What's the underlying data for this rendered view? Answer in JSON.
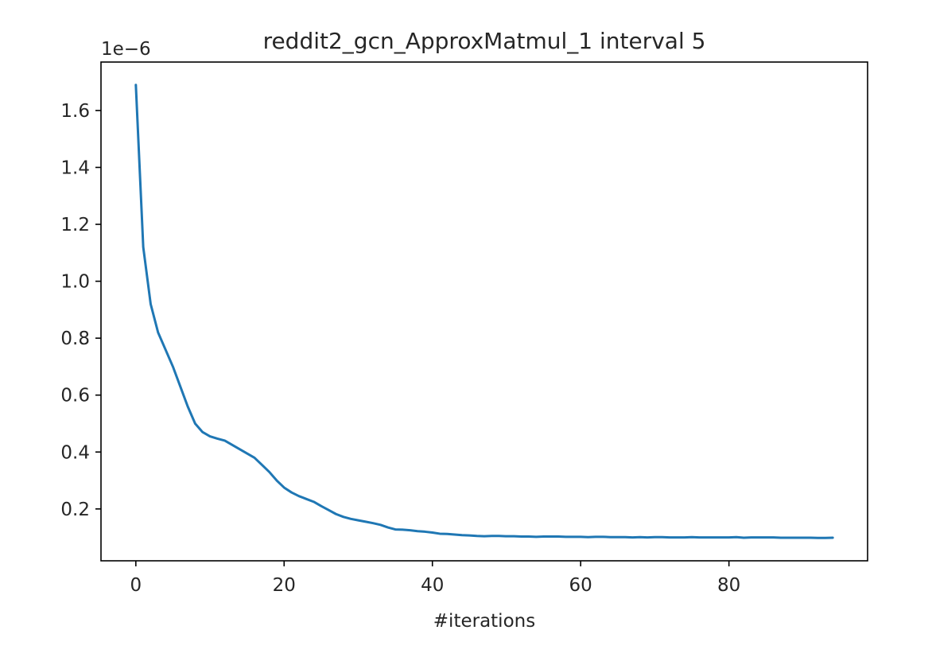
{
  "chart_data": {
    "type": "line",
    "title": "reddit2_gcn_ApproxMatmul_1 interval 5",
    "xlabel": "#iterations",
    "ylabel": "",
    "y_offset_label": "1e−6",
    "xlim": [
      -4.7,
      98.7
    ],
    "ylim": [
      0.0178,
      1.7702
    ],
    "x_ticks": [
      0,
      20,
      40,
      60,
      80
    ],
    "x_tick_labels": [
      "0",
      "20",
      "40",
      "60",
      "80"
    ],
    "y_ticks": [
      0.2,
      0.4,
      0.6,
      0.8,
      1.0,
      1.2,
      1.4,
      1.6
    ],
    "y_tick_labels": [
      "0.2",
      "0.4",
      "0.6",
      "0.8",
      "1.0",
      "1.2",
      "1.4",
      "1.6"
    ],
    "grid": false,
    "series": [
      {
        "color": "#1f77b4",
        "x": [
          0,
          1,
          2,
          3,
          4,
          5,
          6,
          7,
          8,
          9,
          10,
          11,
          12,
          13,
          14,
          15,
          16,
          17,
          18,
          19,
          20,
          21,
          22,
          23,
          24,
          25,
          26,
          27,
          28,
          29,
          30,
          31,
          32,
          33,
          34,
          35,
          36,
          37,
          38,
          39,
          40,
          41,
          42,
          43,
          44,
          45,
          46,
          47,
          48,
          49,
          50,
          51,
          52,
          53,
          54,
          55,
          56,
          57,
          58,
          59,
          60,
          61,
          62,
          63,
          64,
          65,
          66,
          67,
          68,
          69,
          70,
          71,
          72,
          73,
          74,
          75,
          76,
          77,
          78,
          79,
          80,
          81,
          82,
          83,
          84,
          85,
          86,
          87,
          88,
          89,
          90,
          91,
          92,
          93,
          94
        ],
        "y": [
          1.69,
          1.12,
          0.92,
          0.82,
          0.76,
          0.7,
          0.63,
          0.56,
          0.5,
          0.47,
          0.455,
          0.447,
          0.44,
          0.425,
          0.41,
          0.395,
          0.38,
          0.355,
          0.33,
          0.3,
          0.275,
          0.258,
          0.245,
          0.235,
          0.225,
          0.21,
          0.196,
          0.182,
          0.172,
          0.165,
          0.16,
          0.155,
          0.15,
          0.144,
          0.135,
          0.128,
          0.127,
          0.125,
          0.122,
          0.12,
          0.117,
          0.113,
          0.112,
          0.11,
          0.108,
          0.107,
          0.105,
          0.104,
          0.105,
          0.105,
          0.104,
          0.104,
          0.103,
          0.103,
          0.102,
          0.103,
          0.103,
          0.103,
          0.102,
          0.102,
          0.102,
          0.101,
          0.102,
          0.102,
          0.101,
          0.101,
          0.101,
          0.1,
          0.101,
          0.1,
          0.101,
          0.101,
          0.1,
          0.1,
          0.1,
          0.101,
          0.1,
          0.1,
          0.1,
          0.1,
          0.1,
          0.101,
          0.099,
          0.1,
          0.1,
          0.1,
          0.1,
          0.099,
          0.099,
          0.099,
          0.099,
          0.099,
          0.098,
          0.098,
          0.099
        ]
      }
    ]
  }
}
